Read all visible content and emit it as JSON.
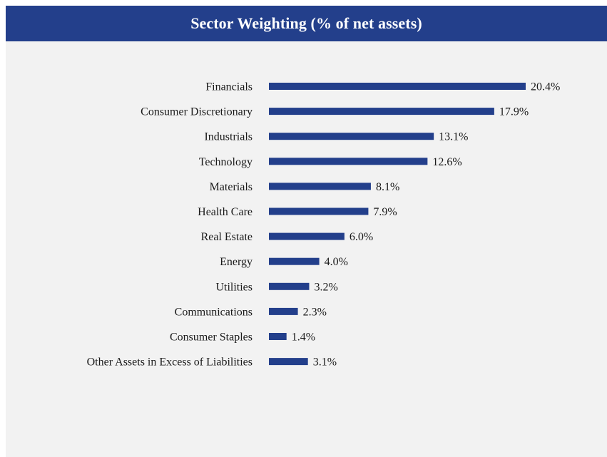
{
  "chart_data": {
    "type": "bar",
    "orientation": "horizontal",
    "title": "Sector Weighting (% of net assets)",
    "categories": [
      "Financials",
      "Consumer Discretionary",
      "Industrials",
      "Technology",
      "Materials",
      "Health Care",
      "Real Estate",
      "Energy",
      "Utilities",
      "Communications",
      "Consumer Staples",
      "Other Assets in Excess of Liabilities"
    ],
    "values": [
      20.4,
      17.9,
      13.1,
      12.6,
      8.1,
      7.9,
      6.0,
      4.0,
      3.2,
      2.3,
      1.4,
      3.1
    ],
    "value_labels": [
      "20.4%",
      "17.9%",
      "13.1%",
      "12.6%",
      "8.1%",
      "7.9%",
      "6.0%",
      "4.0%",
      "3.2%",
      "2.3%",
      "1.4%",
      "3.1%"
    ],
    "xlim": [
      0,
      20.4
    ],
    "grid": false,
    "legend": "none",
    "colors": {
      "bar": "#233f8b",
      "title_bg": "#233f8b",
      "background": "#f2f2f2"
    }
  }
}
